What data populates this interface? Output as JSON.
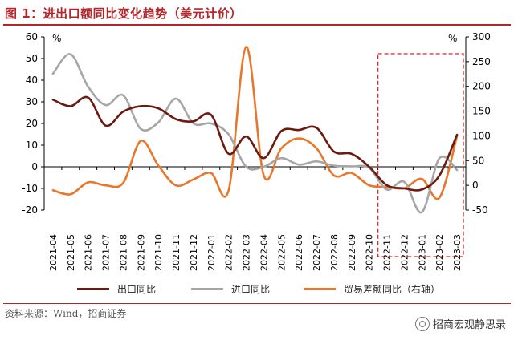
{
  "header": {
    "title": "图 1：进出口额同比变化趋势（美元计价）"
  },
  "chart_data": {
    "type": "line",
    "categories": [
      "2021-04",
      "2021-05",
      "2021-06",
      "2021-07",
      "2021-08",
      "2021-09",
      "2021-10",
      "2021-11",
      "2021-12",
      "2022-01",
      "2022-02",
      "2022-03",
      "2022-04",
      "2022-05",
      "2022-06",
      "2022-07",
      "2022-08",
      "2022-09",
      "2022-10",
      "2022-11",
      "2022-12",
      "2023-01",
      "2023-02",
      "2023-03"
    ],
    "left_axis": {
      "unit": "%",
      "ylim": [
        -20,
        60
      ],
      "ticks": [
        -20,
        -10,
        0,
        10,
        20,
        30,
        40,
        50,
        60
      ]
    },
    "right_axis": {
      "unit": "%",
      "ylim": [
        -50,
        300
      ],
      "ticks": [
        -50,
        0,
        50,
        100,
        150,
        200,
        250,
        300
      ]
    },
    "series": [
      {
        "name": "出口同比",
        "axis": "left",
        "color": "#6b1a10",
        "values": [
          31,
          28,
          32,
          19,
          25.5,
          28,
          27,
          22,
          21,
          24,
          6,
          14,
          4,
          16.5,
          17,
          18,
          7,
          6,
          0,
          -8.5,
          -10,
          -10.5,
          -4,
          14.8
        ]
      },
      {
        "name": "进口同比",
        "axis": "left",
        "color": "#a6a6a6",
        "values": [
          43,
          52,
          37,
          28.5,
          33,
          17.5,
          20.5,
          31.5,
          20,
          20,
          15,
          0,
          0,
          4,
          1,
          2.5,
          0.5,
          0.2,
          -0.5,
          -10.5,
          -7,
          -21,
          4,
          -1.5
        ]
      },
      {
        "name": "贸易差额同比（右轴）",
        "axis": "right",
        "color": "#e8772c",
        "values": [
          -10,
          -18,
          6,
          0,
          5,
          90,
          40,
          0,
          12,
          25,
          -10,
          280,
          20,
          75,
          95,
          75,
          20,
          25,
          0,
          -3,
          -6,
          13,
          -25,
          100
        ]
      }
    ]
  },
  "legend": [
    {
      "label": "出口同比",
      "color": "#6b1a10"
    },
    {
      "label": "进口同比",
      "color": "#a6a6a6"
    },
    {
      "label": "贸易差额同比（右轴）",
      "color": "#e8772c"
    }
  ],
  "annotations": {
    "highlight_box_color": "#e0262a"
  },
  "footer": {
    "source": "资料来源：Wind，招商证券",
    "watermark": "招商宏观静思录"
  }
}
